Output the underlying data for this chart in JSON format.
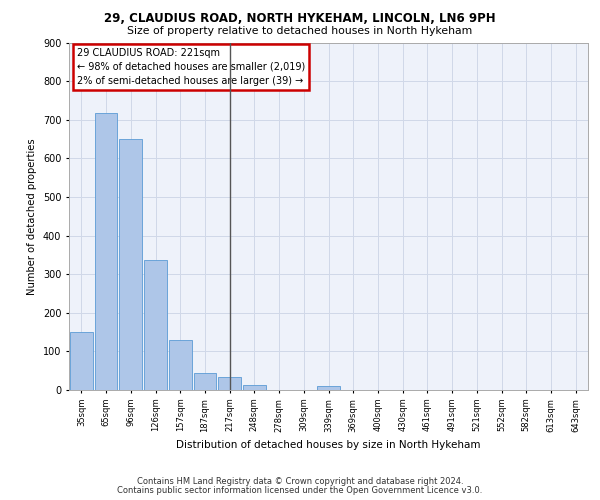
{
  "title1": "29, CLAUDIUS ROAD, NORTH HYKEHAM, LINCOLN, LN6 9PH",
  "title2": "Size of property relative to detached houses in North Hykeham",
  "xlabel": "Distribution of detached houses by size in North Hykeham",
  "ylabel": "Number of detached properties",
  "footer1": "Contains HM Land Registry data © Crown copyright and database right 2024.",
  "footer2": "Contains public sector information licensed under the Open Government Licence v3.0.",
  "categories": [
    "35sqm",
    "65sqm",
    "96sqm",
    "126sqm",
    "157sqm",
    "187sqm",
    "217sqm",
    "248sqm",
    "278sqm",
    "309sqm",
    "339sqm",
    "369sqm",
    "400sqm",
    "430sqm",
    "461sqm",
    "491sqm",
    "521sqm",
    "552sqm",
    "582sqm",
    "613sqm",
    "643sqm"
  ],
  "values": [
    150,
    717,
    651,
    337,
    130,
    45,
    33,
    14,
    0,
    0,
    11,
    0,
    0,
    0,
    0,
    0,
    0,
    0,
    0,
    0,
    0
  ],
  "bar_color": "#aec6e8",
  "bar_edge_color": "#5b9bd5",
  "vline_x": 6,
  "vline_color": "#555555",
  "annotation_line1": "29 CLAUDIUS ROAD: 221sqm",
  "annotation_line2": "← 98% of detached houses are smaller (2,019)",
  "annotation_line3": "2% of semi-detached houses are larger (39) →",
  "annotation_box_color": "#ffffff",
  "annotation_box_edge": "#cc0000",
  "grid_color": "#d0d8e8",
  "background_color": "#eef2fa",
  "ylim": [
    0,
    900
  ],
  "yticks": [
    0,
    100,
    200,
    300,
    400,
    500,
    600,
    700,
    800,
    900
  ]
}
